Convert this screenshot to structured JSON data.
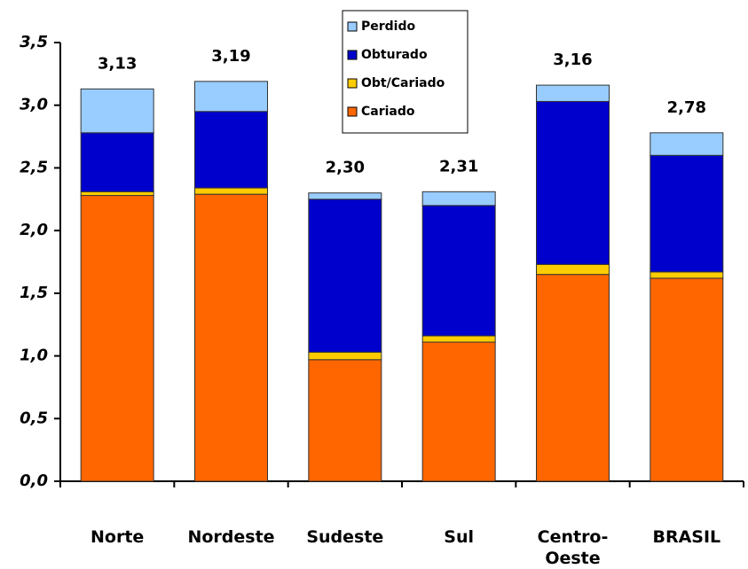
{
  "chart_data": {
    "type": "stacked_bar",
    "categories": [
      "Norte",
      "Nordeste",
      "Sudeste",
      "Sul",
      "Centro-Oeste",
      "BRASIL"
    ],
    "series": [
      {
        "name": "Cariado",
        "color": "#ff6600",
        "values": [
          2.28,
          2.29,
          0.97,
          1.11,
          1.65,
          1.62
        ]
      },
      {
        "name": "Obt/Cariado",
        "color": "#ffcc00",
        "values": [
          0.03,
          0.05,
          0.06,
          0.05,
          0.08,
          0.05
        ]
      },
      {
        "name": "Obturado",
        "color": "#0000cc",
        "values": [
          0.47,
          0.61,
          1.22,
          1.04,
          1.3,
          0.93
        ]
      },
      {
        "name": "Perdido",
        "color": "#99ccff",
        "values": [
          0.35,
          0.24,
          0.05,
          0.11,
          0.13,
          0.18
        ]
      }
    ],
    "totals": {
      "values": [
        3.13,
        3.19,
        2.3,
        2.31,
        3.16,
        2.78
      ],
      "value_labels": [
        "3,13",
        "3,19",
        "2,30",
        "2,31",
        "3,16",
        "2,78"
      ]
    },
    "ylim": [
      0,
      3.5
    ],
    "yticks": [
      {
        "value": 0,
        "label": "0,0"
      },
      {
        "value": 0.5,
        "label": "0,5"
      },
      {
        "value": 1,
        "label": "1,0"
      },
      {
        "value": 1.5,
        "label": "1,5"
      },
      {
        "value": 2,
        "label": "2,0"
      },
      {
        "value": 2.5,
        "label": "2,5"
      },
      {
        "value": 3,
        "label": "3,0"
      },
      {
        "value": 3.5,
        "label": "3,5"
      }
    ],
    "legend": "top-center"
  }
}
